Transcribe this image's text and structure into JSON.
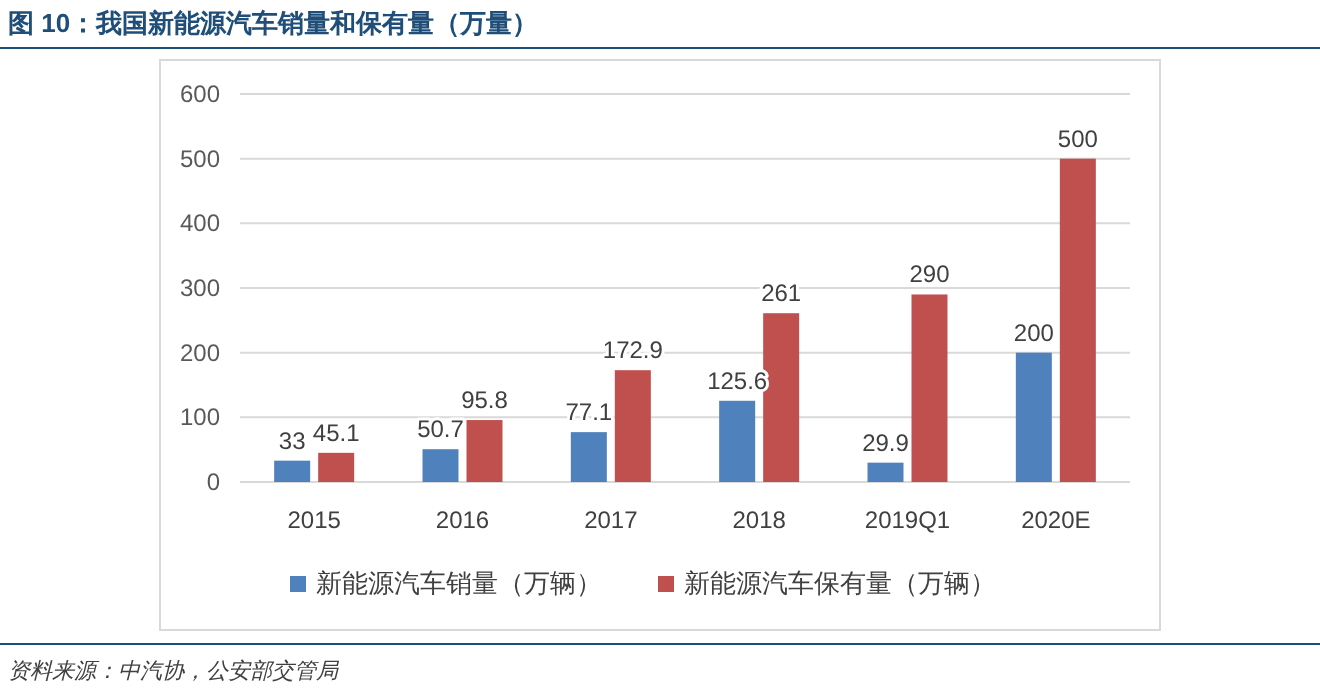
{
  "chart_data": {
    "type": "bar",
    "title": "图 10：我国新能源汽车销量和保有量（万量）",
    "categories": [
      "2015",
      "2016",
      "2017",
      "2018",
      "2019Q1",
      "2020E"
    ],
    "series": [
      {
        "name": "新能源汽车销量（万辆）",
        "color": "#4f81bd",
        "values": [
          33,
          50.7,
          77.1,
          125.6,
          29.9,
          200
        ]
      },
      {
        "name": "新能源汽车保有量（万辆）",
        "color": "#c0504d",
        "values": [
          45.1,
          95.8,
          172.9,
          261,
          290,
          500
        ]
      }
    ],
    "ylim": [
      0,
      600
    ],
    "yticks": [
      0,
      100,
      200,
      300,
      400,
      500,
      600
    ],
    "grid": "y",
    "legend": "bottom",
    "data_labels": true,
    "annotations": [
      "资料来源：中汽协，公安部交管局"
    ]
  }
}
